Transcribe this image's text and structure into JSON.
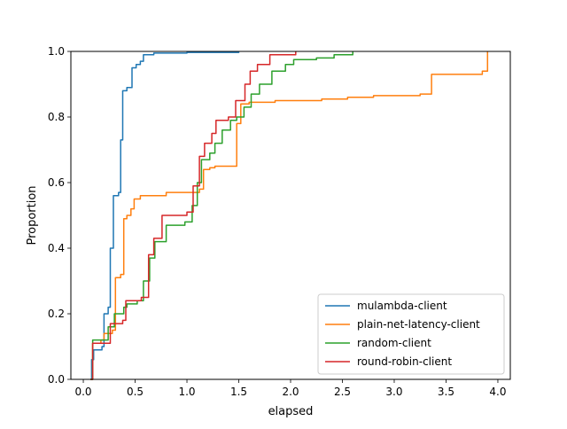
{
  "chart_data": {
    "type": "line",
    "subtype": "ecdf-step",
    "title": "",
    "xlabel": "elapsed",
    "ylabel": "Proportion",
    "xlim": [
      -0.12,
      4.12
    ],
    "ylim": [
      0.0,
      1.0
    ],
    "xticks": [
      0.0,
      0.5,
      1.0,
      1.5,
      2.0,
      2.5,
      3.0,
      3.5,
      4.0
    ],
    "xtick_labels": [
      "0.0",
      "0.5",
      "1.0",
      "1.5",
      "2.0",
      "2.5",
      "3.0",
      "3.5",
      "4.0"
    ],
    "yticks": [
      0.0,
      0.2,
      0.4,
      0.6,
      0.8,
      1.0
    ],
    "ytick_labels": [
      "0.0",
      "0.2",
      "0.4",
      "0.6",
      "0.8",
      "1.0"
    ],
    "grid": false,
    "legend_position": "lower-right",
    "series": [
      {
        "name": "mulambda-client",
        "color": "#1f77b4",
        "points": [
          [
            0.07,
            0.0
          ],
          [
            0.08,
            0.06
          ],
          [
            0.1,
            0.09
          ],
          [
            0.18,
            0.1
          ],
          [
            0.2,
            0.2
          ],
          [
            0.24,
            0.22
          ],
          [
            0.26,
            0.4
          ],
          [
            0.29,
            0.56
          ],
          [
            0.34,
            0.57
          ],
          [
            0.36,
            0.73
          ],
          [
            0.38,
            0.88
          ],
          [
            0.42,
            0.89
          ],
          [
            0.47,
            0.95
          ],
          [
            0.51,
            0.96
          ],
          [
            0.55,
            0.97
          ],
          [
            0.58,
            0.99
          ],
          [
            0.68,
            0.995
          ],
          [
            1.0,
            0.997
          ],
          [
            1.5,
            1.0
          ]
        ]
      },
      {
        "name": "plain-net-latency-client",
        "color": "#ff7f0e",
        "points": [
          [
            0.07,
            0.0
          ],
          [
            0.09,
            0.11
          ],
          [
            0.17,
            0.12
          ],
          [
            0.2,
            0.14
          ],
          [
            0.28,
            0.15
          ],
          [
            0.31,
            0.31
          ],
          [
            0.36,
            0.32
          ],
          [
            0.39,
            0.49
          ],
          [
            0.42,
            0.5
          ],
          [
            0.46,
            0.52
          ],
          [
            0.49,
            0.55
          ],
          [
            0.55,
            0.56
          ],
          [
            0.8,
            0.57
          ],
          [
            1.12,
            0.58
          ],
          [
            1.16,
            0.64
          ],
          [
            1.22,
            0.645
          ],
          [
            1.27,
            0.65
          ],
          [
            1.45,
            0.65
          ],
          [
            1.48,
            0.78
          ],
          [
            1.52,
            0.84
          ],
          [
            1.6,
            0.845
          ],
          [
            1.85,
            0.85
          ],
          [
            2.3,
            0.855
          ],
          [
            2.55,
            0.86
          ],
          [
            2.8,
            0.865
          ],
          [
            3.1,
            0.865
          ],
          [
            3.25,
            0.87
          ],
          [
            3.34,
            0.87
          ],
          [
            3.36,
            0.93
          ],
          [
            3.85,
            0.94
          ],
          [
            3.9,
            1.0
          ]
        ]
      },
      {
        "name": "random-client",
        "color": "#2ca02c",
        "points": [
          [
            0.07,
            0.0
          ],
          [
            0.09,
            0.12
          ],
          [
            0.2,
            0.12
          ],
          [
            0.24,
            0.16
          ],
          [
            0.3,
            0.2
          ],
          [
            0.39,
            0.22
          ],
          [
            0.42,
            0.23
          ],
          [
            0.52,
            0.24
          ],
          [
            0.58,
            0.3
          ],
          [
            0.64,
            0.37
          ],
          [
            0.69,
            0.42
          ],
          [
            0.8,
            0.47
          ],
          [
            0.98,
            0.48
          ],
          [
            1.05,
            0.53
          ],
          [
            1.1,
            0.6
          ],
          [
            1.14,
            0.67
          ],
          [
            1.22,
            0.69
          ],
          [
            1.27,
            0.72
          ],
          [
            1.34,
            0.76
          ],
          [
            1.42,
            0.79
          ],
          [
            1.48,
            0.8
          ],
          [
            1.55,
            0.83
          ],
          [
            1.62,
            0.87
          ],
          [
            1.7,
            0.9
          ],
          [
            1.82,
            0.94
          ],
          [
            1.95,
            0.96
          ],
          [
            2.03,
            0.975
          ],
          [
            2.25,
            0.98
          ],
          [
            2.42,
            0.99
          ],
          [
            2.6,
            1.0
          ]
        ]
      },
      {
        "name": "round-robin-client",
        "color": "#d62728",
        "points": [
          [
            0.07,
            0.0
          ],
          [
            0.09,
            0.11
          ],
          [
            0.2,
            0.11
          ],
          [
            0.26,
            0.17
          ],
          [
            0.38,
            0.18
          ],
          [
            0.41,
            0.24
          ],
          [
            0.56,
            0.25
          ],
          [
            0.63,
            0.38
          ],
          [
            0.68,
            0.43
          ],
          [
            0.76,
            0.5
          ],
          [
            1.0,
            0.51
          ],
          [
            1.06,
            0.59
          ],
          [
            1.12,
            0.68
          ],
          [
            1.17,
            0.72
          ],
          [
            1.24,
            0.75
          ],
          [
            1.28,
            0.79
          ],
          [
            1.4,
            0.8
          ],
          [
            1.47,
            0.85
          ],
          [
            1.56,
            0.9
          ],
          [
            1.61,
            0.94
          ],
          [
            1.68,
            0.96
          ],
          [
            1.8,
            0.99
          ],
          [
            2.05,
            1.0
          ]
        ]
      }
    ]
  }
}
